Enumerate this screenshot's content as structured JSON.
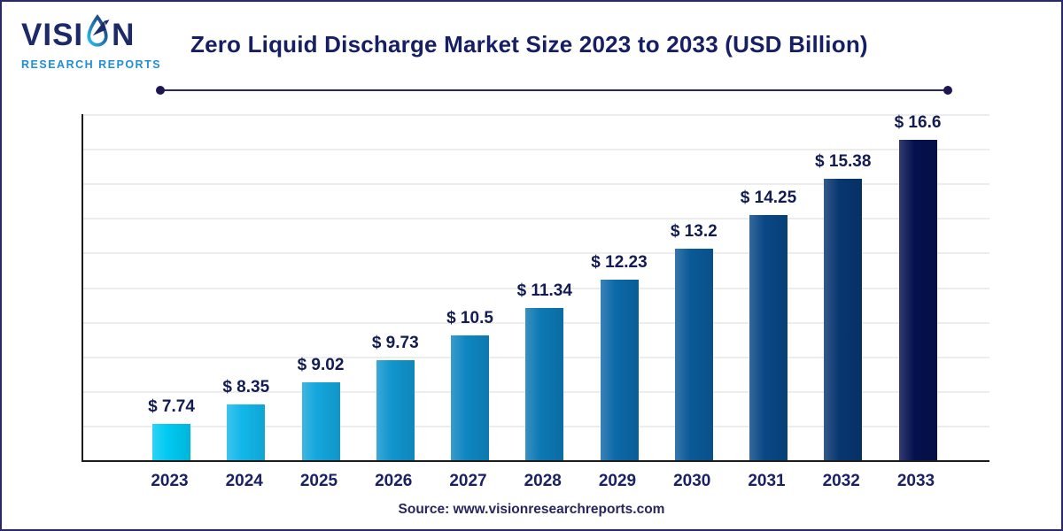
{
  "header": {
    "logo": {
      "brand_prefix": "VISI",
      "brand_suffix": "N",
      "subtitle": "RESEARCH REPORTS"
    },
    "title": "Zero Liquid Discharge Market Size 2023 to 2033 (USD Billion)"
  },
  "chart_data": {
    "type": "bar",
    "title": "Zero Liquid Discharge Market Size 2023 to 2033 (USD Billion)",
    "unit": "USD Billion",
    "categories": [
      "2023",
      "2024",
      "2025",
      "2026",
      "2027",
      "2028",
      "2029",
      "2030",
      "2031",
      "2032",
      "2033"
    ],
    "values": [
      7.74,
      8.35,
      9.02,
      9.73,
      10.5,
      11.34,
      12.23,
      13.2,
      14.25,
      15.38,
      16.6
    ],
    "value_labels": [
      "$ 7.74",
      "$ 8.35",
      "$ 9.02",
      "$ 9.73",
      "$ 10.5",
      "$ 11.34",
      "$ 12.23",
      "$ 13.2",
      "$ 14.25",
      "$ 15.38",
      "$ 16.6"
    ],
    "bar_colors": [
      "#00c9f2",
      "#12b7ea",
      "#13a6dc",
      "#1095ce",
      "#0e86c1",
      "#0c78b4",
      "#0b68a7",
      "#0a5998",
      "#094785",
      "#073670",
      "#05114e"
    ],
    "ylim": [
      6.6,
      17.4
    ],
    "y_axis_labels_visible": false,
    "grid": "horizontal",
    "gridline_count": 10,
    "legend": "none"
  },
  "footer": {
    "source": "Source: www.visionresearchreports.com"
  },
  "colors": {
    "title_navy": "#161f63",
    "label_navy": "#131c52",
    "logo_navy": "#1c2a68",
    "logo_blue": "#1f8fd6",
    "accent_cyan": "#00c9f2",
    "accent_dark_navy": "#05114e",
    "border_navy": "#2b2866",
    "grid_gray": "#ededed",
    "axis_dark": "#1c1c1c"
  }
}
